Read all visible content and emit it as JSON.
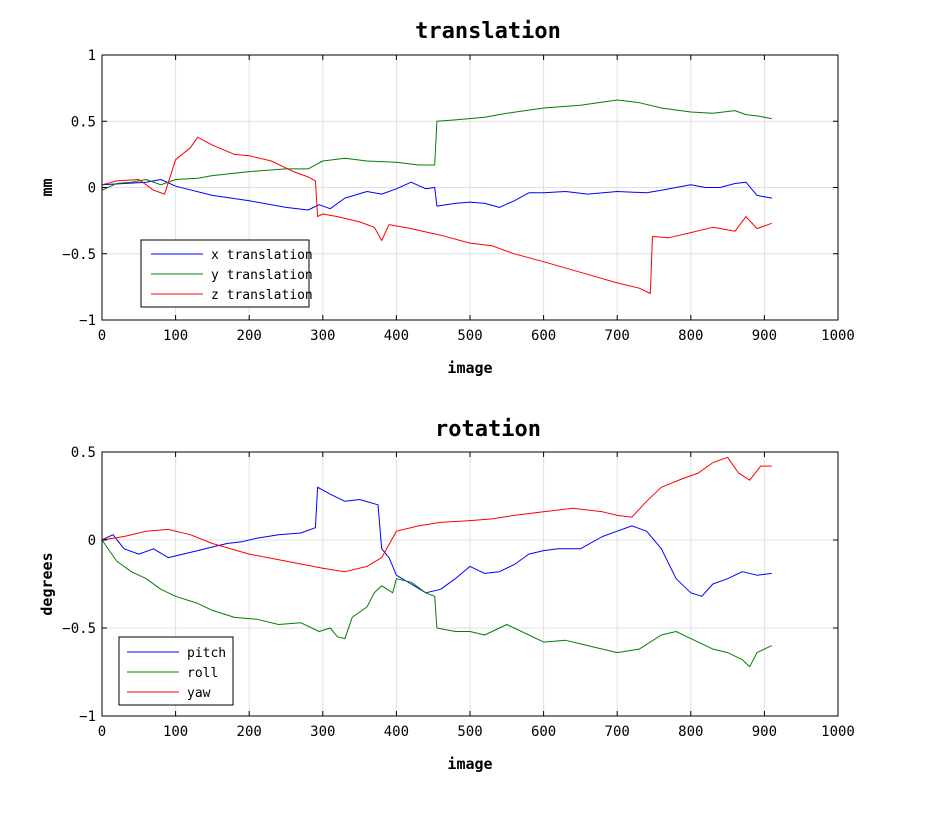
{
  "chart_data": [
    {
      "type": "line",
      "title": "translation",
      "xlabel": "image",
      "ylabel": "mm",
      "xlim": [
        0,
        1000
      ],
      "ylim": [
        -1,
        1
      ],
      "xticks": [
        "0",
        "100",
        "200",
        "300",
        "400",
        "500",
        "600",
        "700",
        "800",
        "900",
        "1000"
      ],
      "yticks": [
        "1",
        "0.5",
        "0",
        "−0.5",
        "−1"
      ],
      "ytick_values": [
        1,
        0.5,
        0,
        -0.5,
        -1
      ],
      "grid": true,
      "legend": "bottom-left",
      "series": [
        {
          "name": "x translation",
          "color": "#0000ff",
          "points": [
            [
              0,
              0.02
            ],
            [
              30,
              0.03
            ],
            [
              60,
              0.04
            ],
            [
              80,
              0.06
            ],
            [
              100,
              0.01
            ],
            [
              150,
              -0.06
            ],
            [
              200,
              -0.1
            ],
            [
              250,
              -0.15
            ],
            [
              280,
              -0.17
            ],
            [
              295,
              -0.13
            ],
            [
              310,
              -0.16
            ],
            [
              330,
              -0.08
            ],
            [
              360,
              -0.03
            ],
            [
              380,
              -0.05
            ],
            [
              400,
              -0.01
            ],
            [
              420,
              0.04
            ],
            [
              440,
              -0.01
            ],
            [
              452,
              0.0
            ],
            [
              455,
              -0.14
            ],
            [
              480,
              -0.12
            ],
            [
              500,
              -0.11
            ],
            [
              520,
              -0.12
            ],
            [
              540,
              -0.15
            ],
            [
              560,
              -0.1
            ],
            [
              580,
              -0.04
            ],
            [
              600,
              -0.04
            ],
            [
              630,
              -0.03
            ],
            [
              660,
              -0.05
            ],
            [
              700,
              -0.03
            ],
            [
              740,
              -0.04
            ],
            [
              760,
              -0.02
            ],
            [
              800,
              0.02
            ],
            [
              820,
              0.0
            ],
            [
              840,
              0.0
            ],
            [
              860,
              0.03
            ],
            [
              875,
              0.04
            ],
            [
              890,
              -0.06
            ],
            [
              910,
              -0.08
            ]
          ]
        },
        {
          "name": "y translation",
          "color": "#008000",
          "points": [
            [
              0,
              -0.02
            ],
            [
              20,
              0.03
            ],
            [
              40,
              0.04
            ],
            [
              60,
              0.06
            ],
            [
              80,
              0.02
            ],
            [
              100,
              0.06
            ],
            [
              130,
              0.07
            ],
            [
              150,
              0.09
            ],
            [
              200,
              0.12
            ],
            [
              250,
              0.14
            ],
            [
              280,
              0.14
            ],
            [
              300,
              0.2
            ],
            [
              330,
              0.22
            ],
            [
              360,
              0.2
            ],
            [
              400,
              0.19
            ],
            [
              430,
              0.17
            ],
            [
              452,
              0.17
            ],
            [
              455,
              0.5
            ],
            [
              480,
              0.51
            ],
            [
              520,
              0.53
            ],
            [
              550,
              0.56
            ],
            [
              600,
              0.6
            ],
            [
              650,
              0.62
            ],
            [
              700,
              0.66
            ],
            [
              730,
              0.64
            ],
            [
              760,
              0.6
            ],
            [
              800,
              0.57
            ],
            [
              830,
              0.56
            ],
            [
              860,
              0.58
            ],
            [
              875,
              0.55
            ],
            [
              890,
              0.54
            ],
            [
              910,
              0.52
            ]
          ]
        },
        {
          "name": "z translation",
          "color": "#ff0000",
          "points": [
            [
              0,
              0.02
            ],
            [
              20,
              0.05
            ],
            [
              50,
              0.06
            ],
            [
              70,
              -0.02
            ],
            [
              85,
              -0.05
            ],
            [
              100,
              0.21
            ],
            [
              120,
              0.3
            ],
            [
              130,
              0.38
            ],
            [
              150,
              0.32
            ],
            [
              180,
              0.25
            ],
            [
              200,
              0.24
            ],
            [
              230,
              0.2
            ],
            [
              260,
              0.12
            ],
            [
              280,
              0.08
            ],
            [
              290,
              0.05
            ],
            [
              293,
              -0.22
            ],
            [
              300,
              -0.2
            ],
            [
              320,
              -0.22
            ],
            [
              350,
              -0.26
            ],
            [
              370,
              -0.3
            ],
            [
              380,
              -0.4
            ],
            [
              390,
              -0.28
            ],
            [
              420,
              -0.31
            ],
            [
              460,
              -0.36
            ],
            [
              500,
              -0.42
            ],
            [
              530,
              -0.44
            ],
            [
              560,
              -0.5
            ],
            [
              600,
              -0.56
            ],
            [
              650,
              -0.64
            ],
            [
              700,
              -0.72
            ],
            [
              730,
              -0.76
            ],
            [
              745,
              -0.8
            ],
            [
              748,
              -0.37
            ],
            [
              770,
              -0.38
            ],
            [
              800,
              -0.34
            ],
            [
              830,
              -0.3
            ],
            [
              860,
              -0.33
            ],
            [
              875,
              -0.22
            ],
            [
              890,
              -0.31
            ],
            [
              910,
              -0.27
            ]
          ]
        }
      ]
    },
    {
      "type": "line",
      "title": "rotation",
      "xlabel": "image",
      "ylabel": "degrees",
      "xlim": [
        0,
        1000
      ],
      "ylim": [
        -1,
        0.5
      ],
      "xticks": [
        "0",
        "100",
        "200",
        "300",
        "400",
        "500",
        "600",
        "700",
        "800",
        "900",
        "1000"
      ],
      "yticks": [
        "0.5",
        "0",
        "−0.5",
        "−1"
      ],
      "ytick_values": [
        0.5,
        0,
        -0.5,
        -1
      ],
      "grid": true,
      "legend": "bottom-left",
      "series": [
        {
          "name": "pitch",
          "color": "#0000ff",
          "points": [
            [
              0,
              0.0
            ],
            [
              15,
              0.03
            ],
            [
              30,
              -0.05
            ],
            [
              50,
              -0.08
            ],
            [
              70,
              -0.05
            ],
            [
              90,
              -0.1
            ],
            [
              110,
              -0.08
            ],
            [
              130,
              -0.06
            ],
            [
              150,
              -0.04
            ],
            [
              170,
              -0.02
            ],
            [
              190,
              -0.01
            ],
            [
              210,
              0.01
            ],
            [
              240,
              0.03
            ],
            [
              270,
              0.04
            ],
            [
              290,
              0.07
            ],
            [
              293,
              0.3
            ],
            [
              310,
              0.26
            ],
            [
              330,
              0.22
            ],
            [
              350,
              0.23
            ],
            [
              375,
              0.2
            ],
            [
              380,
              -0.05
            ],
            [
              390,
              -0.1
            ],
            [
              400,
              -0.2
            ],
            [
              420,
              -0.25
            ],
            [
              440,
              -0.3
            ],
            [
              460,
              -0.28
            ],
            [
              480,
              -0.22
            ],
            [
              500,
              -0.15
            ],
            [
              520,
              -0.19
            ],
            [
              540,
              -0.18
            ],
            [
              560,
              -0.14
            ],
            [
              580,
              -0.08
            ],
            [
              600,
              -0.06
            ],
            [
              620,
              -0.05
            ],
            [
              650,
              -0.05
            ],
            [
              680,
              0.02
            ],
            [
              700,
              0.05
            ],
            [
              720,
              0.08
            ],
            [
              740,
              0.05
            ],
            [
              760,
              -0.05
            ],
            [
              780,
              -0.22
            ],
            [
              800,
              -0.3
            ],
            [
              815,
              -0.32
            ],
            [
              830,
              -0.25
            ],
            [
              850,
              -0.22
            ],
            [
              870,
              -0.18
            ],
            [
              890,
              -0.2
            ],
            [
              910,
              -0.19
            ]
          ]
        },
        {
          "name": "roll",
          "color": "#008000",
          "points": [
            [
              0,
              0.0
            ],
            [
              20,
              -0.12
            ],
            [
              40,
              -0.18
            ],
            [
              60,
              -0.22
            ],
            [
              80,
              -0.28
            ],
            [
              100,
              -0.32
            ],
            [
              130,
              -0.36
            ],
            [
              150,
              -0.4
            ],
            [
              180,
              -0.44
            ],
            [
              210,
              -0.45
            ],
            [
              240,
              -0.48
            ],
            [
              270,
              -0.47
            ],
            [
              295,
              -0.52
            ],
            [
              310,
              -0.5
            ],
            [
              320,
              -0.55
            ],
            [
              330,
              -0.56
            ],
            [
              340,
              -0.44
            ],
            [
              360,
              -0.38
            ],
            [
              370,
              -0.3
            ],
            [
              380,
              -0.26
            ],
            [
              395,
              -0.3
            ],
            [
              400,
              -0.22
            ],
            [
              420,
              -0.24
            ],
            [
              440,
              -0.3
            ],
            [
              452,
              -0.32
            ],
            [
              455,
              -0.5
            ],
            [
              480,
              -0.52
            ],
            [
              500,
              -0.52
            ],
            [
              520,
              -0.54
            ],
            [
              550,
              -0.48
            ],
            [
              580,
              -0.54
            ],
            [
              600,
              -0.58
            ],
            [
              630,
              -0.57
            ],
            [
              660,
              -0.6
            ],
            [
              700,
              -0.64
            ],
            [
              730,
              -0.62
            ],
            [
              760,
              -0.54
            ],
            [
              780,
              -0.52
            ],
            [
              800,
              -0.56
            ],
            [
              830,
              -0.62
            ],
            [
              850,
              -0.64
            ],
            [
              870,
              -0.68
            ],
            [
              880,
              -0.72
            ],
            [
              890,
              -0.64
            ],
            [
              910,
              -0.6
            ]
          ]
        },
        {
          "name": "yaw",
          "color": "#ff0000",
          "points": [
            [
              0,
              0.0
            ],
            [
              30,
              0.02
            ],
            [
              60,
              0.05
            ],
            [
              90,
              0.06
            ],
            [
              120,
              0.03
            ],
            [
              150,
              -0.02
            ],
            [
              200,
              -0.08
            ],
            [
              250,
              -0.12
            ],
            [
              300,
              -0.16
            ],
            [
              330,
              -0.18
            ],
            [
              360,
              -0.15
            ],
            [
              380,
              -0.1
            ],
            [
              400,
              0.05
            ],
            [
              430,
              0.08
            ],
            [
              460,
              0.1
            ],
            [
              500,
              0.11
            ],
            [
              530,
              0.12
            ],
            [
              560,
              0.14
            ],
            [
              600,
              0.16
            ],
            [
              640,
              0.18
            ],
            [
              680,
              0.16
            ],
            [
              700,
              0.14
            ],
            [
              720,
              0.13
            ],
            [
              740,
              0.22
            ],
            [
              760,
              0.3
            ],
            [
              790,
              0.35
            ],
            [
              810,
              0.38
            ],
            [
              830,
              0.44
            ],
            [
              850,
              0.47
            ],
            [
              865,
              0.38
            ],
            [
              880,
              0.34
            ],
            [
              895,
              0.42
            ],
            [
              910,
              0.42
            ]
          ]
        }
      ]
    }
  ]
}
